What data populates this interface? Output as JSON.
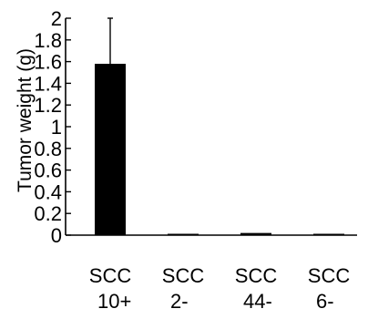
{
  "chart_data": {
    "type": "bar",
    "ylabel": "Tumor weight  (g)",
    "xlabel": "",
    "ylim": [
      0,
      2
    ],
    "yticks": [
      "0",
      "0.2",
      "0.4",
      "0.6",
      "0.8",
      "1",
      "1.2",
      "1.4",
      "1.6",
      "1.8",
      "2"
    ],
    "categories": [
      {
        "line1": "SCC",
        "line2": "10+"
      },
      {
        "line1": "SCC",
        "line2": "2-"
      },
      {
        "line1": "SCC",
        "line2": "44-"
      },
      {
        "line1": "SCC",
        "line2": "6-"
      }
    ],
    "values": [
      1.58,
      0.01,
      0.02,
      0.01
    ],
    "errors": [
      0.42,
      0,
      0,
      0
    ],
    "bar_color": "#000000",
    "grid": false
  }
}
